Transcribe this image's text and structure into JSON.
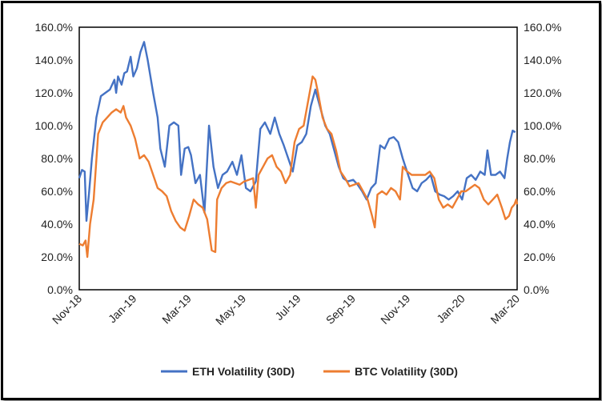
{
  "chart_data": {
    "type": "line",
    "x_tick_labels": [
      "Nov-18",
      "Jan-19",
      "Mar-19",
      "May-19",
      "Jul-19",
      "Sep-19",
      "Nov-19",
      "Jan-20",
      "Mar-20"
    ],
    "y_tick_labels": [
      "0.0%",
      "20.0%",
      "40.0%",
      "60.0%",
      "80.0%",
      "100.0%",
      "120.0%",
      "140.0%",
      "160.0%"
    ],
    "ylim": [
      0,
      160
    ],
    "xlim": [
      "2018-11-01",
      "2020-03-01"
    ],
    "grid": false,
    "legend_position": "bottom",
    "series": [
      {
        "name": "ETH Volatility (30D)",
        "color": "#4472C4",
        "points": [
          [
            "2018-11-01",
            68
          ],
          [
            "2018-11-04",
            73
          ],
          [
            "2018-11-07",
            72
          ],
          [
            "2018-11-09",
            42
          ],
          [
            "2018-11-12",
            60
          ],
          [
            "2018-11-15",
            80
          ],
          [
            "2018-11-20",
            105
          ],
          [
            "2018-11-25",
            118
          ],
          [
            "2018-11-30",
            120
          ],
          [
            "2018-12-05",
            122
          ],
          [
            "2018-12-10",
            128
          ],
          [
            "2018-12-12",
            120
          ],
          [
            "2018-12-14",
            130
          ],
          [
            "2018-12-18",
            125
          ],
          [
            "2018-12-21",
            132
          ],
          [
            "2018-12-24",
            133
          ],
          [
            "2018-12-28",
            142
          ],
          [
            "2018-12-31",
            130
          ],
          [
            "2019-01-04",
            135
          ],
          [
            "2019-01-08",
            145
          ],
          [
            "2019-01-12",
            151
          ],
          [
            "2019-01-16",
            140
          ],
          [
            "2019-01-22",
            120
          ],
          [
            "2019-01-27",
            105
          ],
          [
            "2019-01-30",
            86
          ],
          [
            "2019-02-04",
            75
          ],
          [
            "2019-02-09",
            100
          ],
          [
            "2019-02-14",
            102
          ],
          [
            "2019-02-19",
            100
          ],
          [
            "2019-02-22",
            70
          ],
          [
            "2019-02-26",
            86
          ],
          [
            "2019-03-02",
            87
          ],
          [
            "2019-03-05",
            82
          ],
          [
            "2019-03-10",
            65
          ],
          [
            "2019-03-15",
            70
          ],
          [
            "2019-03-20",
            47
          ],
          [
            "2019-03-25",
            100
          ],
          [
            "2019-03-30",
            75
          ],
          [
            "2019-04-04",
            62
          ],
          [
            "2019-04-09",
            70
          ],
          [
            "2019-04-14",
            72
          ],
          [
            "2019-04-20",
            78
          ],
          [
            "2019-04-25",
            70
          ],
          [
            "2019-04-30",
            82
          ],
          [
            "2019-05-05",
            62
          ],
          [
            "2019-05-10",
            60
          ],
          [
            "2019-05-16",
            66
          ],
          [
            "2019-05-21",
            98
          ],
          [
            "2019-05-26",
            102
          ],
          [
            "2019-06-01",
            95
          ],
          [
            "2019-06-06",
            105
          ],
          [
            "2019-06-11",
            95
          ],
          [
            "2019-06-16",
            88
          ],
          [
            "2019-06-21",
            80
          ],
          [
            "2019-06-26",
            72
          ],
          [
            "2019-07-01",
            88
          ],
          [
            "2019-07-06",
            90
          ],
          [
            "2019-07-11",
            95
          ],
          [
            "2019-07-16",
            112
          ],
          [
            "2019-07-21",
            122
          ],
          [
            "2019-07-27",
            110
          ],
          [
            "2019-08-01",
            100
          ],
          [
            "2019-08-06",
            95
          ],
          [
            "2019-08-11",
            85
          ],
          [
            "2019-08-16",
            75
          ],
          [
            "2019-08-21",
            68
          ],
          [
            "2019-08-26",
            66
          ],
          [
            "2019-09-01",
            67
          ],
          [
            "2019-09-06",
            64
          ],
          [
            "2019-09-11",
            60
          ],
          [
            "2019-09-16",
            55
          ],
          [
            "2019-09-21",
            62
          ],
          [
            "2019-09-26",
            65
          ],
          [
            "2019-10-01",
            88
          ],
          [
            "2019-10-06",
            86
          ],
          [
            "2019-10-11",
            92
          ],
          [
            "2019-10-16",
            93
          ],
          [
            "2019-10-21",
            90
          ],
          [
            "2019-10-26",
            80
          ],
          [
            "2019-11-01",
            70
          ],
          [
            "2019-11-06",
            62
          ],
          [
            "2019-11-11",
            60
          ],
          [
            "2019-11-16",
            65
          ],
          [
            "2019-11-21",
            67
          ],
          [
            "2019-11-26",
            70
          ],
          [
            "2019-12-01",
            60
          ],
          [
            "2019-12-06",
            58
          ],
          [
            "2019-12-11",
            57
          ],
          [
            "2019-12-16",
            55
          ],
          [
            "2019-12-21",
            57
          ],
          [
            "2019-12-26",
            60
          ],
          [
            "2019-12-31",
            55
          ],
          [
            "2020-01-05",
            68
          ],
          [
            "2020-01-10",
            70
          ],
          [
            "2020-01-15",
            67
          ],
          [
            "2020-01-20",
            72
          ],
          [
            "2020-01-25",
            70
          ],
          [
            "2020-01-28",
            85
          ],
          [
            "2020-02-01",
            70
          ],
          [
            "2020-02-06",
            70
          ],
          [
            "2020-02-11",
            72
          ],
          [
            "2020-02-16",
            68
          ],
          [
            "2020-02-19",
            80
          ],
          [
            "2020-02-22",
            90
          ],
          [
            "2020-02-25",
            97
          ],
          [
            "2020-02-28",
            96
          ]
        ]
      },
      {
        "name": "BTC Volatility (30D)",
        "color": "#ED7D31",
        "points": [
          [
            "2018-11-01",
            28
          ],
          [
            "2018-11-05",
            27
          ],
          [
            "2018-11-08",
            30
          ],
          [
            "2018-11-10",
            20
          ],
          [
            "2018-11-13",
            40
          ],
          [
            "2018-11-17",
            55
          ],
          [
            "2018-11-22",
            95
          ],
          [
            "2018-11-27",
            102
          ],
          [
            "2018-12-02",
            105
          ],
          [
            "2018-12-07",
            108
          ],
          [
            "2018-12-12",
            110
          ],
          [
            "2018-12-17",
            108
          ],
          [
            "2018-12-20",
            112
          ],
          [
            "2018-12-23",
            105
          ],
          [
            "2018-12-28",
            100
          ],
          [
            "2019-01-02",
            92
          ],
          [
            "2019-01-07",
            80
          ],
          [
            "2019-01-12",
            82
          ],
          [
            "2019-01-17",
            78
          ],
          [
            "2019-01-22",
            70
          ],
          [
            "2019-01-27",
            62
          ],
          [
            "2019-02-01",
            60
          ],
          [
            "2019-02-06",
            57
          ],
          [
            "2019-02-11",
            48
          ],
          [
            "2019-02-16",
            42
          ],
          [
            "2019-02-21",
            38
          ],
          [
            "2019-02-26",
            36
          ],
          [
            "2019-03-03",
            45
          ],
          [
            "2019-03-08",
            55
          ],
          [
            "2019-03-13",
            52
          ],
          [
            "2019-03-18",
            50
          ],
          [
            "2019-03-23",
            43
          ],
          [
            "2019-03-28",
            24
          ],
          [
            "2019-04-01",
            23
          ],
          [
            "2019-04-03",
            55
          ],
          [
            "2019-04-08",
            62
          ],
          [
            "2019-04-13",
            65
          ],
          [
            "2019-04-18",
            66
          ],
          [
            "2019-04-23",
            65
          ],
          [
            "2019-04-28",
            64
          ],
          [
            "2019-05-03",
            66
          ],
          [
            "2019-05-08",
            67
          ],
          [
            "2019-05-13",
            68
          ],
          [
            "2019-05-16",
            50
          ],
          [
            "2019-05-19",
            70
          ],
          [
            "2019-05-24",
            75
          ],
          [
            "2019-05-29",
            80
          ],
          [
            "2019-06-03",
            82
          ],
          [
            "2019-06-08",
            75
          ],
          [
            "2019-06-13",
            72
          ],
          [
            "2019-06-18",
            65
          ],
          [
            "2019-06-23",
            70
          ],
          [
            "2019-06-28",
            90
          ],
          [
            "2019-07-03",
            98
          ],
          [
            "2019-07-08",
            100
          ],
          [
            "2019-07-13",
            115
          ],
          [
            "2019-07-18",
            130
          ],
          [
            "2019-07-21",
            128
          ],
          [
            "2019-07-24",
            120
          ],
          [
            "2019-07-29",
            105
          ],
          [
            "2019-08-03",
            98
          ],
          [
            "2019-08-08",
            95
          ],
          [
            "2019-08-13",
            85
          ],
          [
            "2019-08-18",
            72
          ],
          [
            "2019-08-23",
            68
          ],
          [
            "2019-08-28",
            63
          ],
          [
            "2019-09-02",
            64
          ],
          [
            "2019-09-07",
            65
          ],
          [
            "2019-09-12",
            60
          ],
          [
            "2019-09-17",
            55
          ],
          [
            "2019-09-22",
            45
          ],
          [
            "2019-09-25",
            38
          ],
          [
            "2019-09-28",
            58
          ],
          [
            "2019-10-03",
            60
          ],
          [
            "2019-10-08",
            58
          ],
          [
            "2019-10-13",
            62
          ],
          [
            "2019-10-18",
            60
          ],
          [
            "2019-10-23",
            55
          ],
          [
            "2019-10-26",
            75
          ],
          [
            "2019-10-31",
            72
          ],
          [
            "2019-11-05",
            70
          ],
          [
            "2019-11-10",
            70
          ],
          [
            "2019-11-15",
            70
          ],
          [
            "2019-11-20",
            70
          ],
          [
            "2019-11-25",
            72
          ],
          [
            "2019-11-30",
            68
          ],
          [
            "2019-12-05",
            55
          ],
          [
            "2019-12-10",
            50
          ],
          [
            "2019-12-15",
            52
          ],
          [
            "2019-12-20",
            50
          ],
          [
            "2019-12-25",
            55
          ],
          [
            "2019-12-30",
            60
          ],
          [
            "2020-01-04",
            60
          ],
          [
            "2020-01-09",
            62
          ],
          [
            "2020-01-14",
            64
          ],
          [
            "2020-01-19",
            62
          ],
          [
            "2020-01-24",
            55
          ],
          [
            "2020-01-29",
            52
          ],
          [
            "2020-02-03",
            55
          ],
          [
            "2020-02-08",
            58
          ],
          [
            "2020-02-13",
            50
          ],
          [
            "2020-02-17",
            43
          ],
          [
            "2020-02-21",
            45
          ],
          [
            "2020-02-24",
            50
          ],
          [
            "2020-02-27",
            52
          ],
          [
            "2020-02-29",
            55
          ],
          [
            "2020-03-01",
            52
          ]
        ]
      }
    ]
  }
}
